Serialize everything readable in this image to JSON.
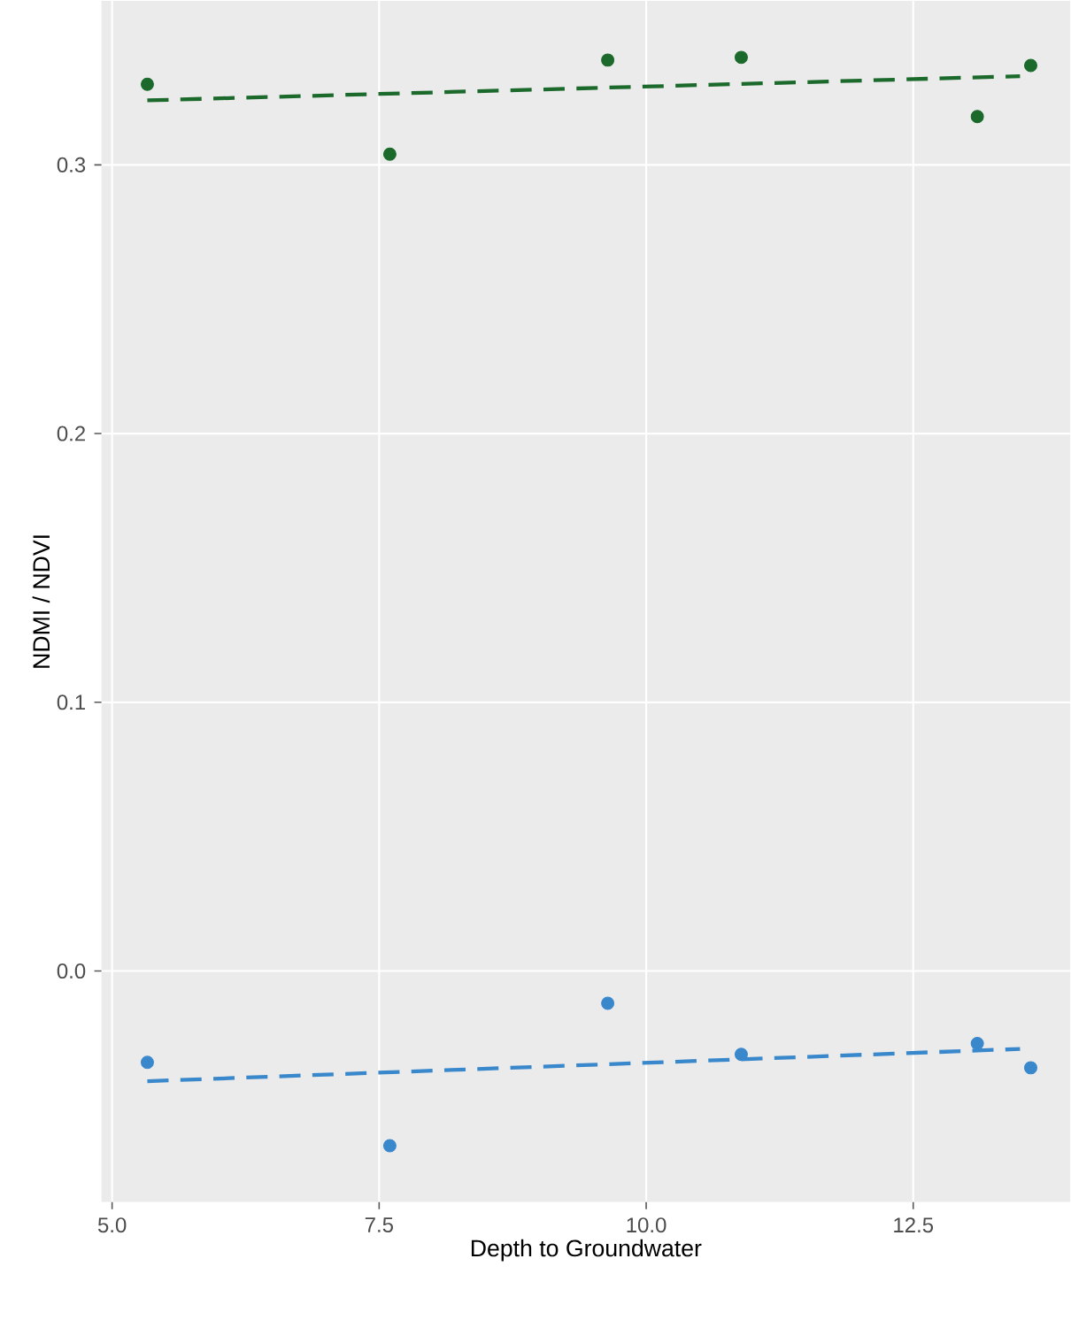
{
  "chart_data": {
    "type": "scatter",
    "xlabel": "Depth to Groundwater",
    "ylabel": "NDMI / NDVI",
    "xlim": [
      4.9,
      13.97
    ],
    "ylim": [
      -0.086,
      0.361
    ],
    "xticks": [
      {
        "value": 5.0,
        "label": "5.0"
      },
      {
        "value": 7.5,
        "label": "7.5"
      },
      {
        "value": 10.0,
        "label": "10.0"
      },
      {
        "value": 12.5,
        "label": "12.5"
      }
    ],
    "yticks": [
      {
        "value": 0.0,
        "label": "0.0"
      },
      {
        "value": 0.1,
        "label": "0.1"
      },
      {
        "value": 0.2,
        "label": "0.2"
      },
      {
        "value": 0.3,
        "label": "0.3"
      }
    ],
    "grid": true,
    "marker": "circle",
    "series": [
      {
        "color": "#1b6a2c",
        "x": [
          5.33,
          7.6,
          9.64,
          10.89,
          13.1,
          13.6
        ],
        "values": [
          0.33,
          0.304,
          0.339,
          0.34,
          0.318,
          0.337
        ]
      },
      {
        "type": "line",
        "marker": "none",
        "line_style": "dashed",
        "color": "#1b6a2c",
        "x": [
          5.33,
          13.5
        ],
        "values": [
          0.324,
          0.333
        ]
      },
      {
        "color": "#3a88cc",
        "x": [
          5.33,
          7.6,
          9.64,
          10.89,
          13.1,
          13.6
        ],
        "values": [
          -0.034,
          -0.065,
          -0.012,
          -0.031,
          -0.027,
          -0.036
        ]
      },
      {
        "type": "line",
        "marker": "none",
        "line_style": "dashed",
        "color": "#3a88cc",
        "x": [
          5.33,
          13.5
        ],
        "values": [
          -0.041,
          -0.029
        ]
      }
    ]
  }
}
